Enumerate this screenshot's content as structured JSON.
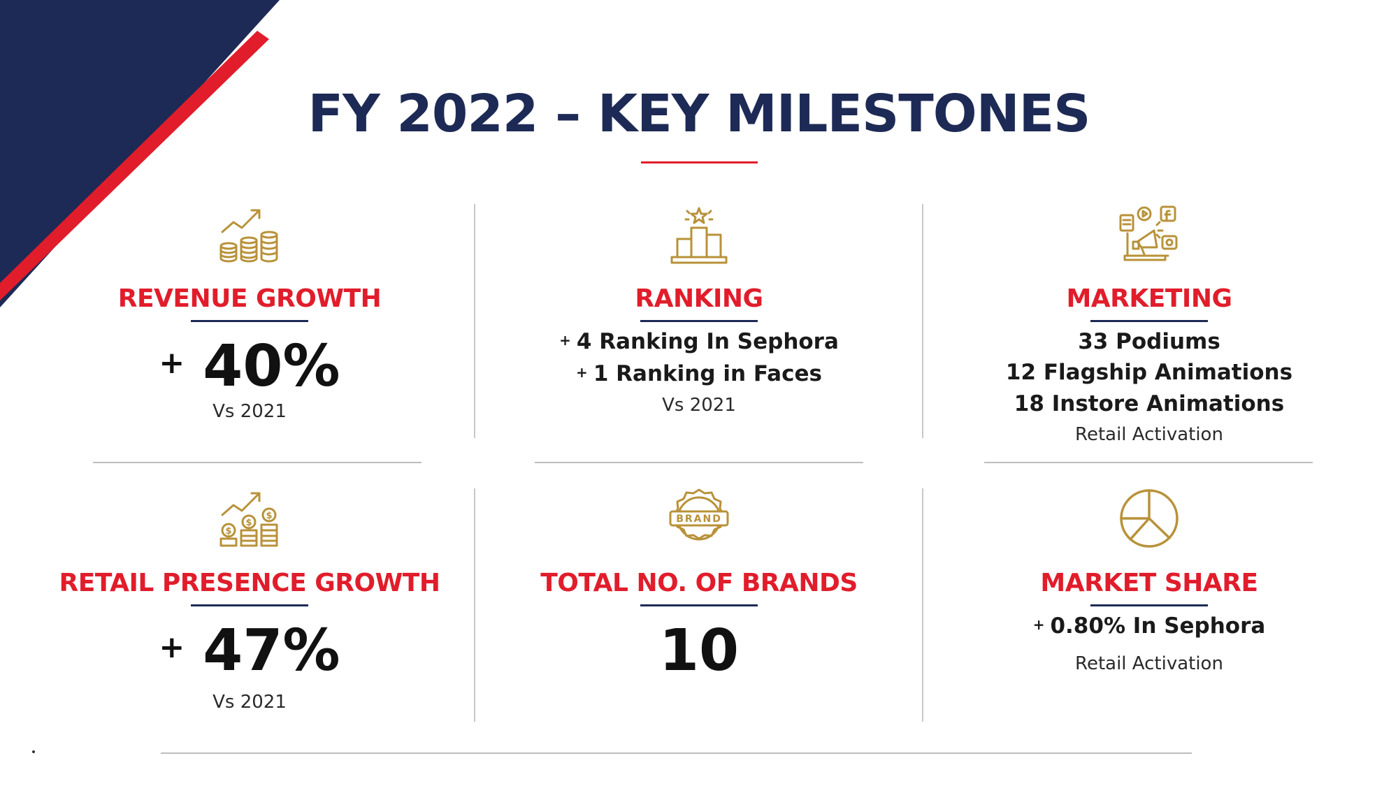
{
  "title": "FY 2022 – KEY MILESTONES",
  "colors": {
    "navy": "#1d2a55",
    "red": "#e11d2b",
    "gold": "#b8923a",
    "divider": "#c7c7c7"
  },
  "cards": [
    {
      "id": "revenue",
      "icon": "growth-chart-coins-icon",
      "heading": "REVENUE GROWTH",
      "plus": "+",
      "value": "40%",
      "sub": "Vs 2021"
    },
    {
      "id": "ranking",
      "icon": "podium-star-icon",
      "heading": "RANKING",
      "lines": [
        {
          "plus": "+",
          "text": "4 Ranking In Sephora"
        },
        {
          "plus": "+",
          "text": "1 Ranking in Faces"
        }
      ],
      "sub": "Vs 2021"
    },
    {
      "id": "marketing",
      "icon": "megaphone-social-icon",
      "heading": "MARKETING",
      "lines": [
        {
          "text": "33 Podiums"
        },
        {
          "text": "12 Flagship Animations"
        },
        {
          "text": "18 Instore Animations"
        }
      ],
      "sub": "Retail Activation"
    },
    {
      "id": "retail",
      "icon": "dollar-coins-growth-icon",
      "heading": "RETAIL PRESENCE GROWTH",
      "plus": "+",
      "value": "47%",
      "sub": "Vs 2021"
    },
    {
      "id": "brands",
      "icon": "brand-badge-icon",
      "heading": "TOTAL NO. OF BRANDS",
      "value": "10",
      "badge_text": "BRAND"
    },
    {
      "id": "share",
      "icon": "pie-chart-icon",
      "heading": "MARKET SHARE",
      "lines": [
        {
          "plus": "+",
          "text": "0.80% In Sephora"
        }
      ],
      "sub": "Retail Activation"
    }
  ]
}
